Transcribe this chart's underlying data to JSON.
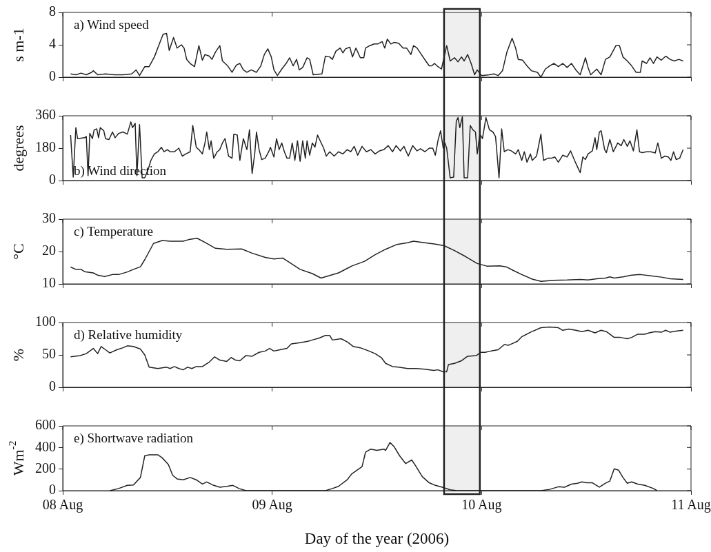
{
  "chart_data": [
    {
      "type": "line",
      "ylabel": "s m-1",
      "annotations": [
        "a) Wind speed"
      ],
      "color": "#222222",
      "marker": "none",
      "tick_labels": "y",
      "xlim": [
        "2006-08-08",
        "2006-08-11"
      ],
      "xticks": [
        {
          "value": "2006-08-08",
          "label": null
        },
        {
          "value": "2006-08-09",
          "label": null
        },
        {
          "value": "2006-08-10",
          "label": null
        },
        {
          "value": "2006-08-11",
          "label": null
        }
      ],
      "ylim": [
        0,
        8
      ],
      "yticks": [
        0,
        4,
        8
      ],
      "bands": [
        {
          "axis": "x",
          "from": "2006-08-09T19:42",
          "to": "2006-08-09T23:48",
          "color": "#222222"
        }
      ],
      "x": [
        "2006-08-08T00:54",
        "2006-08-08T01:30",
        "2006-08-08T02:06",
        "2006-08-08T02:42",
        "2006-08-08T03:18",
        "2006-08-08T03:30",
        "2006-08-08T04:00",
        "2006-08-08T04:54",
        "2006-08-08T05:54",
        "2006-08-08T06:54",
        "2006-08-08T07:54",
        "2006-08-08T08:24",
        "2006-08-08T08:48",
        "2006-08-08T09:24",
        "2006-08-08T09:54",
        "2006-08-08T10:30",
        "2006-08-08T11:06",
        "2006-08-08T11:30",
        "2006-08-08T11:54",
        "2006-08-08T12:12",
        "2006-08-08T12:42",
        "2006-08-08T13:06",
        "2006-08-08T13:36",
        "2006-08-08T13:54",
        "2006-08-08T14:12",
        "2006-08-08T14:36",
        "2006-08-08T15:06",
        "2006-08-08T15:36",
        "2006-08-08T16:00",
        "2006-08-08T16:18",
        "2006-08-08T16:48",
        "2006-08-08T17:06",
        "2006-08-08T17:30",
        "2006-08-08T18:00",
        "2006-08-08T18:18",
        "2006-08-08T18:54",
        "2006-08-08T19:24",
        "2006-08-08T19:54",
        "2006-08-08T20:18",
        "2006-08-08T20:42",
        "2006-08-08T21:06",
        "2006-08-08T21:36",
        "2006-08-08T22:12",
        "2006-08-08T22:42",
        "2006-08-08T23:06",
        "2006-08-08T23:30",
        "2006-08-08T23:54",
        "2006-08-09T00:12",
        "2006-08-09T00:36",
        "2006-08-09T01:06",
        "2006-08-09T01:36",
        "2006-08-09T02:00",
        "2006-08-09T02:24",
        "2006-08-09T02:48",
        "2006-08-09T03:06",
        "2006-08-09T03:30",
        "2006-08-09T04:00",
        "2006-08-09T04:18",
        "2006-08-09T04:42",
        "2006-08-09T05:42",
        "2006-08-09T06:06",
        "2006-08-09T06:36",
        "2006-08-09T06:54",
        "2006-08-09T07:18",
        "2006-08-09T07:48",
        "2006-08-09T08:06",
        "2006-08-09T08:24",
        "2006-08-09T08:54",
        "2006-08-09T09:12",
        "2006-08-09T09:36",
        "2006-08-09T10:06",
        "2006-08-09T10:30",
        "2006-08-09T10:42",
        "2006-08-09T11:12",
        "2006-08-09T11:42",
        "2006-08-09T12:06",
        "2006-08-09T12:36",
        "2006-08-09T12:54",
        "2006-08-09T13:12",
        "2006-08-09T13:36",
        "2006-08-09T14:00",
        "2006-08-09T14:30",
        "2006-08-09T15:00",
        "2006-08-09T15:24",
        "2006-08-09T15:54",
        "2006-08-09T16:12",
        "2006-08-09T16:36",
        "2006-08-09T17:06",
        "2006-08-09T17:36",
        "2006-08-09T18:00",
        "2006-08-09T18:18",
        "2006-08-09T18:36",
        "2006-08-09T19:00",
        "2006-08-09T19:24",
        "2006-08-09T20:00",
        "2006-08-09T20:24",
        "2006-08-09T20:54",
        "2006-08-09T21:18",
        "2006-08-09T21:42",
        "2006-08-09T22:00",
        "2006-08-09T22:24",
        "2006-08-09T22:48",
        "2006-08-09T23:12",
        "2006-08-09T23:30",
        "2006-08-10T00:00",
        "2006-08-10T00:54",
        "2006-08-10T01:24",
        "2006-08-10T01:54",
        "2006-08-10T02:24",
        "2006-08-10T02:54",
        "2006-08-10T03:30",
        "2006-08-10T03:54",
        "2006-08-10T04:12",
        "2006-08-10T04:42",
        "2006-08-10T05:12",
        "2006-08-10T05:42",
        "2006-08-10T06:24",
        "2006-08-10T06:48",
        "2006-08-10T07:18",
        "2006-08-10T07:48",
        "2006-08-10T08:18",
        "2006-08-10T08:48",
        "2006-08-10T09:18",
        "2006-08-10T09:48",
        "2006-08-10T10:18",
        "2006-08-10T10:48",
        "2006-08-10T11:18",
        "2006-08-10T11:54",
        "2006-08-10T12:12",
        "2006-08-10T12:30",
        "2006-08-10T13:12",
        "2006-08-10T13:42",
        "2006-08-10T14:12",
        "2006-08-10T14:42",
        "2006-08-10T15:24",
        "2006-08-10T15:48",
        "2006-08-10T16:12",
        "2006-08-10T16:42",
        "2006-08-10T17:12",
        "2006-08-10T17:42",
        "2006-08-10T18:12",
        "2006-08-10T18:24",
        "2006-08-10T18:54",
        "2006-08-10T19:18",
        "2006-08-10T19:42",
        "2006-08-10T20:06",
        "2006-08-10T20:36",
        "2006-08-10T21:06",
        "2006-08-10T21:36",
        "2006-08-10T22:06",
        "2006-08-10T22:36",
        "2006-08-10T23:06"
      ],
      "values": [
        0.4,
        0.3,
        0.5,
        0.3,
        0.6,
        0.8,
        0.3,
        0.4,
        0.3,
        0.3,
        0.4,
        0.9,
        0.2,
        1.3,
        1.3,
        2.5,
        4.2,
        5.3,
        5.4,
        3.3,
        4.9,
        3.6,
        4.0,
        3.6,
        2.2,
        1.7,
        1.3,
        3.9,
        2.1,
        2.8,
        2.6,
        2.2,
        3.1,
        3.9,
        2.0,
        1.4,
        0.6,
        1.5,
        1.7,
        0.9,
        0.6,
        0.9,
        0.6,
        1.4,
        2.8,
        3.5,
        2.5,
        0.9,
        0.2,
        1.0,
        1.7,
        2.4,
        1.4,
        2.2,
        0.9,
        1.2,
        2.4,
        2.2,
        0.3,
        0.4,
        2.6,
        2.5,
        2.2,
        3.2,
        3.6,
        3.0,
        3.5,
        3.7,
        2.5,
        3.6,
        2.4,
        2.4,
        3.6,
        3.9,
        4.1,
        4.1,
        4.4,
        3.6,
        4.7,
        4.1,
        4.3,
        4.2,
        3.6,
        3.6,
        2.8,
        3.9,
        3.6,
        2.8,
        2.0,
        1.4,
        1.4,
        1.7,
        1.3,
        1.0,
        3.9,
        2.0,
        2.4,
        1.9,
        2.5,
        2.0,
        2.8,
        1.7,
        0.3,
        0.9,
        0.2,
        0.3,
        0.4,
        0.2,
        0.8,
        3.1,
        4.8,
        3.6,
        2.2,
        2.1,
        1.4,
        0.8,
        0.6,
        0.0,
        1.0,
        1.4,
        1.7,
        1.3,
        1.7,
        1.2,
        1.7,
        0.9,
        0.3,
        2.4,
        1.2,
        0.3,
        1.0,
        0.3,
        2.2,
        2.5,
        3.9,
        3.9,
        2.5,
        2.0,
        1.4,
        0.6,
        0.6,
        2.0,
        1.7,
        2.4,
        1.7,
        2.5,
        2.1,
        2.6,
        2.2,
        2.0,
        2.2,
        2.0
      ]
    },
    {
      "type": "line",
      "ylabel": "degrees",
      "annotations": [
        "b) Wind direction"
      ],
      "color": "#222222",
      "marker": "none",
      "tick_labels": "y",
      "xlim": [
        "2006-08-08",
        "2006-08-11"
      ],
      "xticks": [
        {
          "value": "2006-08-08",
          "label": null
        },
        {
          "value": "2006-08-09",
          "label": null
        },
        {
          "value": "2006-08-10",
          "label": null
        },
        {
          "value": "2006-08-11",
          "label": null
        }
      ],
      "ylim": [
        0,
        360
      ],
      "yticks": [
        0,
        180,
        360
      ],
      "bands": [
        {
          "axis": "x",
          "from": "2006-08-09T19:42",
          "to": "2006-08-09T23:48",
          "color": "#222222"
        }
      ],
      "x": [
        "2006-08-08T00:54",
        "2006-08-08T01:12",
        "2006-08-08T01:30",
        "2006-08-08T01:42",
        "2006-08-08T02:30",
        "2006-08-08T02:42",
        "2006-08-08T02:54",
        "2006-08-08T03:06",
        "2006-08-08T03:24",
        "2006-08-08T03:36",
        "2006-08-08T03:54",
        "2006-08-08T04:06",
        "2006-08-08T04:18",
        "2006-08-08T04:42",
        "2006-08-08T04:54",
        "2006-08-08T05:18",
        "2006-08-08T05:42",
        "2006-08-08T06:00",
        "2006-08-08T06:24",
        "2006-08-08T06:54",
        "2006-08-08T07:24",
        "2006-08-08T07:48",
        "2006-08-08T08:00",
        "2006-08-08T08:18",
        "2006-08-08T08:30",
        "2006-08-08T08:48",
        "2006-08-08T09:06",
        "2006-08-08T09:24",
        "2006-08-08T09:48",
        "2006-08-08T10:06",
        "2006-08-08T10:30",
        "2006-08-08T10:54",
        "2006-08-08T11:18",
        "2006-08-08T11:36",
        "2006-08-08T12:00",
        "2006-08-08T12:18",
        "2006-08-08T12:48",
        "2006-08-08T13:18",
        "2006-08-08T13:42",
        "2006-08-08T14:06",
        "2006-08-08T14:36",
        "2006-08-08T14:54",
        "2006-08-08T15:18",
        "2006-08-08T15:36",
        "2006-08-08T16:00",
        "2006-08-08T16:18",
        "2006-08-08T16:30",
        "2006-08-08T16:48",
        "2006-08-08T17:00",
        "2006-08-08T17:18",
        "2006-08-08T17:42",
        "2006-08-08T18:00",
        "2006-08-08T18:18",
        "2006-08-08T18:36",
        "2006-08-08T19:00",
        "2006-08-08T19:24",
        "2006-08-08T19:36",
        "2006-08-08T20:00",
        "2006-08-08T20:18",
        "2006-08-08T20:42",
        "2006-08-08T21:06",
        "2006-08-08T21:24",
        "2006-08-08T21:42",
        "2006-08-08T22:00",
        "2006-08-08T22:12",
        "2006-08-08T22:30",
        "2006-08-08T22:48",
        "2006-08-08T23:12",
        "2006-08-08T23:36",
        "2006-08-08T23:48",
        "2006-08-09T00:12",
        "2006-08-09T00:30",
        "2006-08-09T00:48",
        "2006-08-09T01:06",
        "2006-08-09T01:24",
        "2006-08-09T01:42",
        "2006-08-09T02:00",
        "2006-08-09T02:18",
        "2006-08-09T02:36",
        "2006-08-09T02:54",
        "2006-08-09T03:12",
        "2006-08-09T03:30",
        "2006-08-09T03:48",
        "2006-08-09T04:00",
        "2006-08-09T04:18",
        "2006-08-09T04:36",
        "2006-08-09T04:54",
        "2006-08-09T05:12",
        "2006-08-09T05:30",
        "2006-08-09T05:54",
        "2006-08-09T06:12",
        "2006-08-09T06:36",
        "2006-08-09T07:06",
        "2006-08-09T07:36",
        "2006-08-09T08:06",
        "2006-08-09T08:36",
        "2006-08-09T09:00",
        "2006-08-09T09:24",
        "2006-08-09T09:48",
        "2006-08-09T10:18",
        "2006-08-09T10:48",
        "2006-08-09T11:18",
        "2006-08-09T11:48",
        "2006-08-09T12:18",
        "2006-08-09T12:48",
        "2006-08-09T13:18",
        "2006-08-09T13:48",
        "2006-08-09T14:12",
        "2006-08-09T14:42",
        "2006-08-09T15:06",
        "2006-08-09T15:36",
        "2006-08-09T16:06",
        "2006-08-09T16:36",
        "2006-08-09T17:00",
        "2006-08-09T17:30",
        "2006-08-09T18:00",
        "2006-08-09T18:24",
        "2006-08-09T18:42",
        "2006-08-09T19:00",
        "2006-08-09T19:18",
        "2006-08-09T19:36",
        "2006-08-09T19:48",
        "2006-08-09T20:00",
        "2006-08-09T20:24",
        "2006-08-09T20:48",
        "2006-08-09T21:06",
        "2006-08-09T21:18",
        "2006-08-09T21:30",
        "2006-08-09T21:48",
        "2006-08-09T22:00",
        "2006-08-09T22:24",
        "2006-08-09T22:42",
        "2006-08-09T23:00",
        "2006-08-09T23:18",
        "2006-08-09T23:30",
        "2006-08-09T23:48",
        "2006-08-10T00:06",
        "2006-08-10T00:30",
        "2006-08-10T00:54",
        "2006-08-10T01:18",
        "2006-08-10T01:36",
        "2006-08-10T02:00",
        "2006-08-10T02:18",
        "2006-08-10T02:36",
        "2006-08-10T03:00",
        "2006-08-10T03:24",
        "2006-08-10T03:54",
        "2006-08-10T04:12",
        "2006-08-10T04:36",
        "2006-08-10T04:54",
        "2006-08-10T05:12",
        "2006-08-10T05:36",
        "2006-08-10T05:48",
        "2006-08-10T06:18",
        "2006-08-10T06:48",
        "2006-08-10T07:06",
        "2006-08-10T07:36",
        "2006-08-10T08:00",
        "2006-08-10T08:24",
        "2006-08-10T08:48",
        "2006-08-10T09:18",
        "2006-08-10T09:48",
        "2006-08-10T10:12",
        "2006-08-10T10:42",
        "2006-08-10T11:00",
        "2006-08-10T11:18",
        "2006-08-10T11:36",
        "2006-08-10T11:54",
        "2006-08-10T12:12",
        "2006-08-10T12:42",
        "2006-08-10T13:00",
        "2006-08-10T13:12",
        "2006-08-10T13:30",
        "2006-08-10T13:42",
        "2006-08-10T14:06",
        "2006-08-10T14:18",
        "2006-08-10T14:42",
        "2006-08-10T15:06",
        "2006-08-10T15:36",
        "2006-08-10T16:00",
        "2006-08-10T16:18",
        "2006-08-10T16:42",
        "2006-08-10T17:00",
        "2006-08-10T17:24",
        "2006-08-10T17:48",
        "2006-08-10T18:06",
        "2006-08-10T18:24",
        "2006-08-10T18:54",
        "2006-08-10T19:24",
        "2006-08-10T19:54",
        "2006-08-10T20:12",
        "2006-08-10T20:36",
        "2006-08-10T21:00",
        "2006-08-10T21:24",
        "2006-08-10T21:42",
        "2006-08-10T22:00",
        "2006-08-10T22:18",
        "2006-08-10T22:42",
        "2006-08-10T23:06"
      ],
      "values": [
        253,
        19,
        294,
        233,
        238,
        245,
        27,
        262,
        233,
        282,
        287,
        238,
        294,
        277,
        233,
        228,
        270,
        238,
        262,
        270,
        258,
        326,
        294,
        318,
        27,
        311,
        15,
        15,
        63,
        112,
        148,
        160,
        185,
        160,
        172,
        160,
        160,
        180,
        136,
        148,
        160,
        306,
        185,
        172,
        148,
        209,
        270,
        172,
        221,
        124,
        160,
        172,
        209,
        233,
        136,
        124,
        258,
        253,
        112,
        233,
        172,
        282,
        39,
        148,
        270,
        172,
        117,
        124,
        160,
        185,
        131,
        233,
        172,
        209,
        160,
        124,
        124,
        209,
        112,
        221,
        107,
        221,
        124,
        221,
        141,
        209,
        185,
        253,
        221,
        180,
        136,
        160,
        136,
        160,
        148,
        172,
        160,
        190,
        141,
        190,
        160,
        172,
        148,
        165,
        172,
        194,
        160,
        194,
        165,
        190,
        136,
        194,
        165,
        177,
        160,
        180,
        180,
        141,
        221,
        277,
        180,
        209,
        180,
        15,
        19,
        330,
        350,
        294,
        355,
        15,
        15,
        306,
        282,
        270,
        148,
        258,
        233,
        350,
        282,
        270,
        245,
        15,
        287,
        160,
        172,
        165,
        148,
        172,
        112,
        160,
        102,
        148,
        112,
        136,
        258,
        112,
        124,
        124,
        131,
        102,
        141,
        131,
        165,
        107,
        75,
        44,
        131,
        117,
        148,
        165,
        238,
        172,
        270,
        277,
        172,
        155,
        228,
        160,
        209,
        194,
        228,
        190,
        221,
        165,
        282,
        160,
        155,
        160,
        160,
        153,
        209,
        124,
        136,
        131,
        112,
        160,
        117,
        124,
        172
      ]
    },
    {
      "type": "line",
      "ylabel": "°C",
      "annotations": [
        "c) Temperature"
      ],
      "color": "#222222",
      "marker": "none",
      "tick_labels": "y",
      "xlim": [
        "2006-08-08",
        "2006-08-11"
      ],
      "xticks": [
        {
          "value": "2006-08-08",
          "label": null
        },
        {
          "value": "2006-08-09",
          "label": null
        },
        {
          "value": "2006-08-10",
          "label": null
        },
        {
          "value": "2006-08-11",
          "label": null
        }
      ],
      "ylim": [
        10,
        30
      ],
      "yticks": [
        10,
        20,
        30
      ],
      "bands": [
        {
          "axis": "x",
          "from": "2006-08-09T19:42",
          "to": "2006-08-09T23:48",
          "color": "#222222"
        }
      ],
      "x": [
        "2006-08-08T00:54",
        "2006-08-08T01:30",
        "2006-08-08T02:06",
        "2006-08-08T02:30",
        "2006-08-08T03:30",
        "2006-08-08T04:00",
        "2006-08-08T04:48",
        "2006-08-08T05:42",
        "2006-08-08T06:24",
        "2006-08-08T07:24",
        "2006-08-08T08:06",
        "2006-08-08T08:54",
        "2006-08-08T09:24",
        "2006-08-08T10:24",
        "2006-08-08T11:24",
        "2006-08-08T12:18",
        "2006-08-08T13:48",
        "2006-08-08T14:36",
        "2006-08-08T15:24",
        "2006-08-08T16:24",
        "2006-08-08T17:30",
        "2006-08-08T18:48",
        "2006-08-08T20:30",
        "2006-08-08T21:42",
        "2006-08-08T23:12",
        "2006-08-09T00:12",
        "2006-08-09T01:12",
        "2006-08-09T01:54",
        "2006-08-09T03:12",
        "2006-08-09T04:36",
        "2006-08-09T05:36",
        "2006-08-09T06:36",
        "2006-08-09T07:36",
        "2006-08-09T09:06",
        "2006-08-09T10:36",
        "2006-08-09T11:48",
        "2006-08-09T13:00",
        "2006-08-09T14:18",
        "2006-08-09T15:30",
        "2006-08-09T16:12",
        "2006-08-09T17:30",
        "2006-08-09T18:42",
        "2006-08-09T19:42",
        "2006-08-09T20:54",
        "2006-08-09T22:12",
        "2006-08-09T23:30",
        "2006-08-10T00:36",
        "2006-08-10T02:06",
        "2006-08-10T02:54",
        "2006-08-10T03:36",
        "2006-08-10T04:36",
        "2006-08-10T05:48",
        "2006-08-10T06:48",
        "2006-08-10T08:18",
        "2006-08-10T09:48",
        "2006-08-10T11:18",
        "2006-08-10T12:12",
        "2006-08-10T13:12",
        "2006-08-10T14:12",
        "2006-08-10T14:42",
        "2006-08-10T15:12",
        "2006-08-10T16:12",
        "2006-08-10T17:12",
        "2006-08-10T18:12",
        "2006-08-10T19:24",
        "2006-08-10T20:36",
        "2006-08-10T21:36",
        "2006-08-10T23:06"
      ],
      "values": [
        15.2,
        14.5,
        14.5,
        13.8,
        13.4,
        12.7,
        12.3,
        12.9,
        12.9,
        13.7,
        14.5,
        15.3,
        17.5,
        22.5,
        23.4,
        23.2,
        23.2,
        23.8,
        24.1,
        22.7,
        21.0,
        20.7,
        20.8,
        19.5,
        18.2,
        17.7,
        18.0,
        16.8,
        14.5,
        13.2,
        11.8,
        12.6,
        13.4,
        15.5,
        17.0,
        19.0,
        20.7,
        22.2,
        22.7,
        23.2,
        22.7,
        22.3,
        21.8,
        20.3,
        18.4,
        16.3,
        15.5,
        15.6,
        15.2,
        14.2,
        12.9,
        11.5,
        10.8,
        11.1,
        11.2,
        11.4,
        11.2,
        11.6,
        11.8,
        12.2,
        11.8,
        12.2,
        12.7,
        12.9,
        12.5,
        12.1,
        11.6,
        11.4
      ]
    },
    {
      "type": "line",
      "ylabel": "%",
      "annotations": [
        "d) Relative humidity"
      ],
      "color": "#222222",
      "marker": "none",
      "tick_labels": "y",
      "xlim": [
        "2006-08-08",
        "2006-08-11"
      ],
      "xticks": [
        {
          "value": "2006-08-08",
          "label": null
        },
        {
          "value": "2006-08-09",
          "label": null
        },
        {
          "value": "2006-08-10",
          "label": null
        },
        {
          "value": "2006-08-11",
          "label": null
        }
      ],
      "ylim": [
        0,
        100
      ],
      "yticks": [
        0,
        50,
        100
      ],
      "bands": [
        {
          "axis": "x",
          "from": "2006-08-09T19:42",
          "to": "2006-08-09T23:48",
          "color": "#222222"
        }
      ],
      "x": [
        "2006-08-08T00:54",
        "2006-08-08T02:00",
        "2006-08-08T02:42",
        "2006-08-08T03:30",
        "2006-08-08T04:00",
        "2006-08-08T04:24",
        "2006-08-08T04:54",
        "2006-08-08T05:24",
        "2006-08-08T06:12",
        "2006-08-08T06:54",
        "2006-08-08T07:24",
        "2006-08-08T08:06",
        "2006-08-08T08:54",
        "2006-08-08T09:24",
        "2006-08-08T09:54",
        "2006-08-08T10:54",
        "2006-08-08T11:54",
        "2006-08-08T12:18",
        "2006-08-08T12:48",
        "2006-08-08T13:18",
        "2006-08-08T13:48",
        "2006-08-08T14:18",
        "2006-08-08T14:48",
        "2006-08-08T15:18",
        "2006-08-08T16:00",
        "2006-08-08T16:48",
        "2006-08-08T17:24",
        "2006-08-08T18:00",
        "2006-08-08T18:48",
        "2006-08-08T19:18",
        "2006-08-08T19:48",
        "2006-08-08T20:18",
        "2006-08-08T21:00",
        "2006-08-08T21:42",
        "2006-08-08T22:30",
        "2006-08-08T23:12",
        "2006-08-08T23:42",
        "2006-08-09T00:12",
        "2006-08-09T00:54",
        "2006-08-09T01:42",
        "2006-08-09T02:12",
        "2006-08-09T03:12",
        "2006-08-09T04:06",
        "2006-08-09T04:36",
        "2006-08-09T05:24",
        "2006-08-09T06:06",
        "2006-08-09T06:36",
        "2006-08-09T06:54",
        "2006-08-09T07:54",
        "2006-08-09T08:36",
        "2006-08-09T09:18",
        "2006-08-09T10:06",
        "2006-08-09T11:06",
        "2006-08-09T11:48",
        "2006-08-09T12:30",
        "2006-08-09T13:00",
        "2006-08-09T13:48",
        "2006-08-09T14:30",
        "2006-08-09T15:30",
        "2006-08-09T16:30",
        "2006-08-09T17:30",
        "2006-08-09T18:30",
        "2006-08-09T19:00",
        "2006-08-09T19:36",
        "2006-08-09T20:00",
        "2006-08-09T20:12",
        "2006-08-09T20:54",
        "2006-08-09T21:42",
        "2006-08-09T22:24",
        "2006-08-09T23:24",
        "2006-08-09T23:54",
        "2006-08-10T00:24",
        "2006-08-10T01:06",
        "2006-08-10T01:54",
        "2006-08-10T02:36",
        "2006-08-10T03:06",
        "2006-08-10T03:36",
        "2006-08-10T04:06",
        "2006-08-10T04:36",
        "2006-08-10T05:36",
        "2006-08-10T06:48",
        "2006-08-10T07:48",
        "2006-08-10T08:48",
        "2006-08-10T09:18",
        "2006-08-10T10:00",
        "2006-08-10T10:48",
        "2006-08-10T11:30",
        "2006-08-10T12:12",
        "2006-08-10T13:00",
        "2006-08-10T13:42",
        "2006-08-10T14:18",
        "2006-08-10T15:12",
        "2006-08-10T15:54",
        "2006-08-10T16:42",
        "2006-08-10T17:12",
        "2006-08-10T17:54",
        "2006-08-10T18:42",
        "2006-08-10T19:12",
        "2006-08-10T19:54",
        "2006-08-10T20:36",
        "2006-08-10T21:06",
        "2006-08-10T21:36",
        "2006-08-10T22:24",
        "2006-08-10T23:06"
      ],
      "values": [
        47,
        49,
        52,
        60,
        52,
        63,
        58,
        53,
        58,
        61,
        64,
        63,
        59,
        50,
        31,
        29,
        31,
        29,
        32,
        29,
        27,
        31,
        29,
        32,
        32,
        39,
        47,
        42,
        40,
        46,
        42,
        41,
        49,
        48,
        54,
        56,
        60,
        56,
        58,
        60,
        67,
        69,
        71,
        73,
        76,
        80,
        80,
        73,
        75,
        70,
        63,
        61,
        56,
        52,
        46,
        37,
        32,
        31,
        29,
        29,
        28,
        26,
        27,
        24,
        24,
        35,
        37,
        41,
        48,
        49,
        54,
        54,
        56,
        58,
        66,
        65,
        68,
        71,
        78,
        85,
        92,
        93,
        92,
        88,
        90,
        88,
        86,
        88,
        84,
        88,
        86,
        77,
        77,
        75,
        77,
        82,
        82,
        84,
        86,
        85,
        88,
        85,
        87,
        88
      ]
    },
    {
      "type": "line",
      "ylabel": "Wm$^{-2}$",
      "xlabel": "Day of the year (2006)",
      "annotations": [
        "e) Shortwave radiation"
      ],
      "color": "#222222",
      "marker": "none",
      "xlim": [
        "2006-08-08",
        "2006-08-11"
      ],
      "xticks": [
        {
          "value": "2006-08-08",
          "label": "08 Aug"
        },
        {
          "value": "2006-08-09",
          "label": "09 Aug"
        },
        {
          "value": "2006-08-10",
          "label": "10 Aug"
        },
        {
          "value": "2006-08-11",
          "label": "11 Aug"
        }
      ],
      "ylim": [
        0,
        600
      ],
      "yticks": [
        0,
        200,
        400,
        600
      ],
      "bands": [
        {
          "axis": "x",
          "from": "2006-08-09T19:42",
          "to": "2006-08-09T23:48",
          "color": "#222222"
        }
      ],
      "x": [
        "2006-08-08T05:24",
        "2006-08-08T06:24",
        "2006-08-08T07:24",
        "2006-08-08T08:06",
        "2006-08-08T08:54",
        "2006-08-08T09:24",
        "2006-08-08T09:54",
        "2006-08-08T10:54",
        "2006-08-08T11:24",
        "2006-08-08T12:06",
        "2006-08-08T12:36",
        "2006-08-08T13:06",
        "2006-08-08T13:48",
        "2006-08-08T14:36",
        "2006-08-08T15:18",
        "2006-08-08T16:00",
        "2006-08-08T16:30",
        "2006-08-08T17:18",
        "2006-08-08T18:00",
        "2006-08-08T18:48",
        "2006-08-08T19:30",
        "2006-08-08T20:12",
        "2006-08-08T21:00",
        "2006-08-09T06:06",
        "2006-08-09T06:54",
        "2006-08-09T07:36",
        "2006-08-09T08:36",
        "2006-08-09T09:06",
        "2006-08-09T09:36",
        "2006-08-09T10:18",
        "2006-08-09T10:42",
        "2006-08-09T11:18",
        "2006-08-09T12:00",
        "2006-08-09T12:48",
        "2006-08-09T13:00",
        "2006-08-09T13:30",
        "2006-08-09T14:00",
        "2006-08-09T14:36",
        "2006-08-09T15:18",
        "2006-08-09T16:00",
        "2006-08-09T16:30",
        "2006-08-09T17:12",
        "2006-08-09T18:00",
        "2006-08-09T18:42",
        "2006-08-09T19:30",
        "2006-08-09T20:24",
        "2006-08-09T21:12",
        "2006-08-10T06:48",
        "2006-08-10T07:48",
        "2006-08-10T08:48",
        "2006-08-10T09:30",
        "2006-08-10T10:18",
        "2006-08-10T11:00",
        "2006-08-10T11:30",
        "2006-08-10T12:00",
        "2006-08-10T12:42",
        "2006-08-10T13:30",
        "2006-08-10T14:12",
        "2006-08-10T14:42",
        "2006-08-10T15:12",
        "2006-08-10T15:42",
        "2006-08-10T16:12",
        "2006-08-10T16:42",
        "2006-08-10T17:12",
        "2006-08-10T17:54",
        "2006-08-10T18:42",
        "2006-08-10T19:42",
        "2006-08-10T20:06"
      ],
      "values": [
        0,
        20,
        49,
        53,
        122,
        324,
        332,
        332,
        304,
        243,
        142,
        109,
        101,
        122,
        101,
        61,
        81,
        49,
        32,
        40,
        49,
        20,
        0,
        0,
        20,
        40,
        101,
        154,
        182,
        223,
        356,
        385,
        373,
        385,
        373,
        446,
        405,
        324,
        251,
        284,
        223,
        130,
        73,
        49,
        32,
        8,
        0,
        0,
        12,
        36,
        32,
        61,
        69,
        81,
        73,
        73,
        32,
        69,
        89,
        203,
        190,
        122,
        69,
        81,
        61,
        49,
        20,
        0
      ]
    }
  ]
}
